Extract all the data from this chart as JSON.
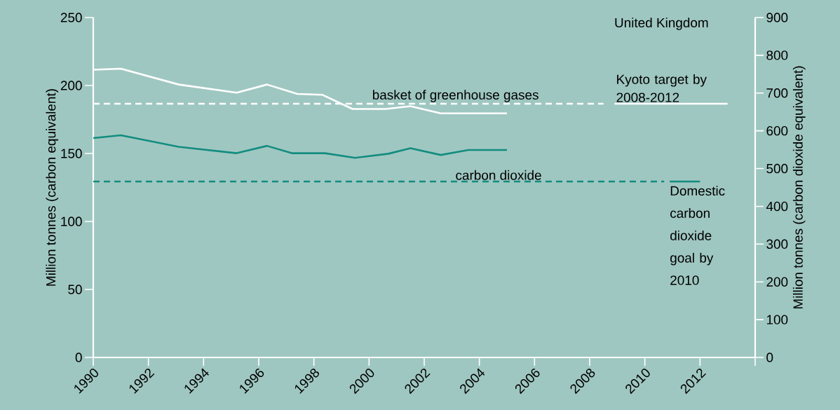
{
  "chart_data": {
    "type": "line",
    "title": "United Kingdom",
    "ylabel": "Million tonnes (carbon equivalent)",
    "y2label": "Million tonnes (carbon dioxide equivalent)",
    "xlim": [
      1990,
      2014
    ],
    "xticks": [
      1990,
      1992,
      1994,
      1996,
      1998,
      2000,
      2002,
      2004,
      2006,
      2008,
      2010,
      2012,
      {
        "value": 2014,
        "label": null
      }
    ],
    "ylim": [
      0,
      250
    ],
    "yticks": [
      0,
      50,
      100,
      150,
      200,
      250
    ],
    "y2lim": [
      0,
      900
    ],
    "y2ticks": [
      0,
      100,
      200,
      300,
      400,
      500,
      600,
      700,
      800,
      900
    ],
    "grid": false,
    "marker": "none",
    "series": [
      {
        "color": "#ffffff",
        "line_style": "solid",
        "x": [
          1990,
          1991,
          1993.1,
          1995.2,
          1996.3,
          1997.4,
          1998.3,
          1999.4,
          2000.6,
          2001.5,
          2002.6,
          2005
        ],
        "values": [
          211.6,
          212.4,
          200.7,
          194.7,
          200.7,
          193.8,
          193.2,
          182.7,
          182.7,
          184.8,
          179.5,
          179.5
        ]
      },
      {
        "color": "#138d80",
        "line_style": "solid",
        "x": [
          1990,
          1991,
          1993.1,
          1995.2,
          1996.3,
          1997.2,
          1998.4,
          1999.5,
          2000.7,
          2001.5,
          2002.6,
          2003.6,
          2005
        ],
        "values": [
          161.3,
          163.4,
          154.9,
          150.2,
          155.6,
          150.2,
          150.2,
          146.8,
          149.8,
          153.9,
          148.9,
          152.6,
          152.6
        ]
      },
      {
        "name": "basket of greenhouse gases",
        "color": "#ffffff",
        "line_style": "dashed",
        "x": [
          1990,
          2008.5
        ],
        "values": [
          186.6,
          186.6
        ]
      },
      {
        "color": "#ffffff",
        "line_style": "solid",
        "x": [
          2008.9,
          2013
        ],
        "values": [
          186.6,
          186.6
        ]
      },
      {
        "name": "carbon dioxide",
        "color": "#138d80",
        "line_style": "dashed",
        "x": [
          1990,
          2010.7
        ],
        "values": [
          129.4,
          129.4
        ]
      },
      {
        "color": "#138d80",
        "line_style": "solid",
        "x": [
          2010.9,
          2012
        ],
        "values": [
          129.4,
          129.4
        ]
      }
    ],
    "annotations": [
      {
        "text": "Kyoto target by 2008-2012",
        "x": 2008.9,
        "y": 186.6
      },
      {
        "text": "Domestic carbon dioxide goal by 2010",
        "x": 2010.9,
        "y": 129.4
      }
    ]
  }
}
